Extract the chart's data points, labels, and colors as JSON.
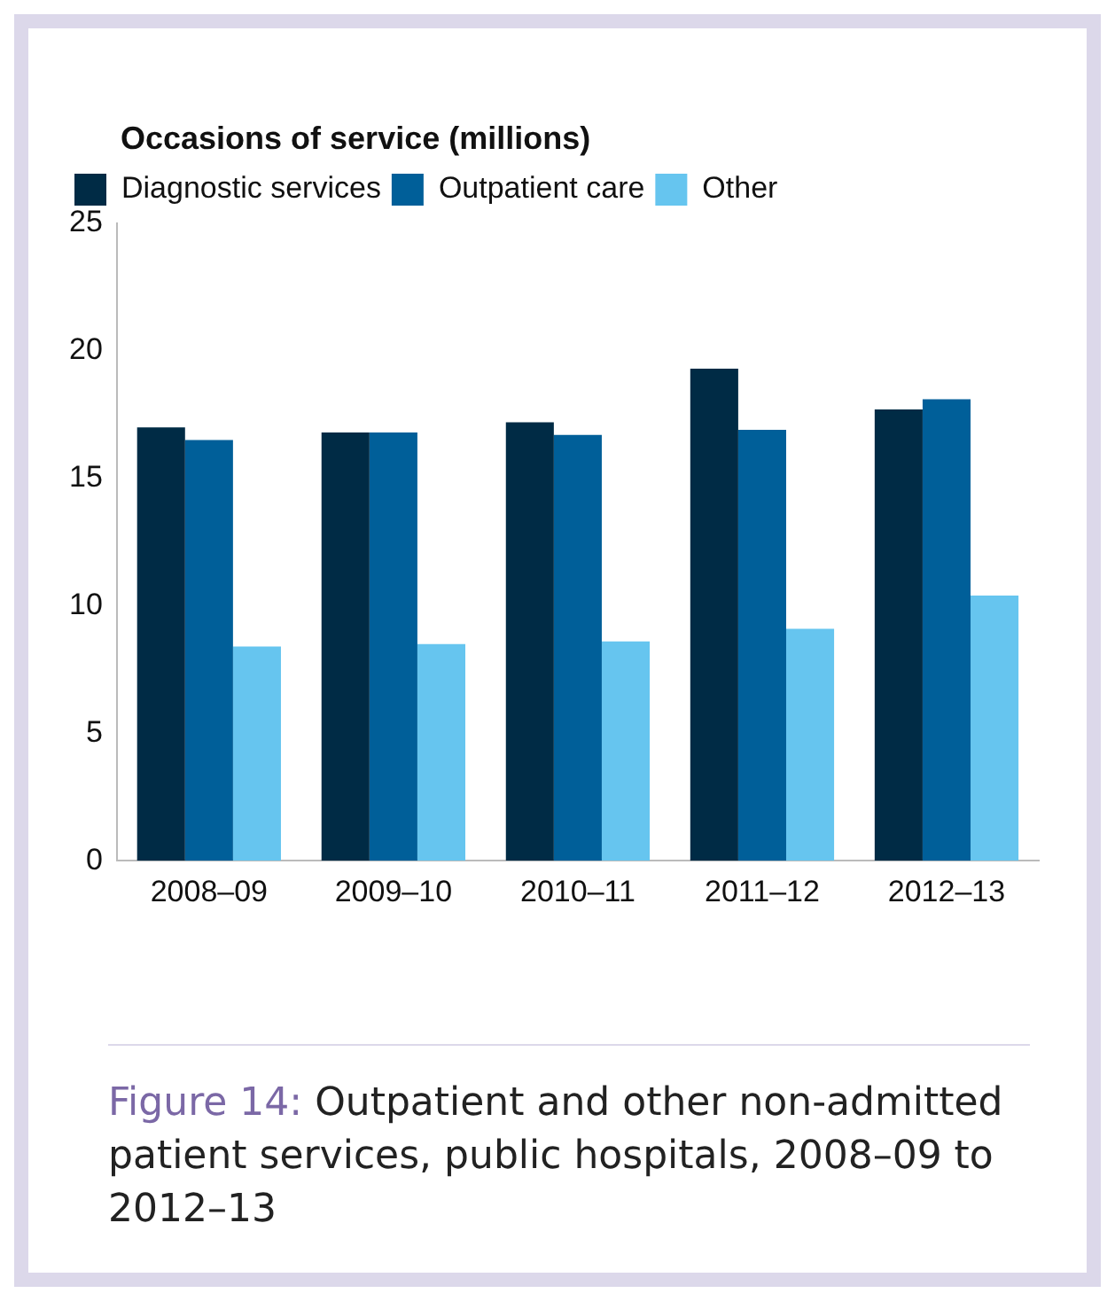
{
  "chart_data": {
    "type": "bar",
    "ylabel": "Occasions of service (millions)",
    "categories": [
      "2008–09",
      "2009–10",
      "2010–11",
      "2011–12",
      "2012–13"
    ],
    "series": [
      {
        "name": "Diagnostic services",
        "color": "#002b45",
        "values": [
          17.0,
          16.8,
          17.2,
          19.3,
          17.7
        ]
      },
      {
        "name": "Outpatient care",
        "color": "#005f99",
        "values": [
          16.5,
          16.8,
          16.7,
          16.9,
          18.1
        ]
      },
      {
        "name": "Other",
        "color": "#66c5ef",
        "values": [
          8.4,
          8.5,
          8.6,
          9.1,
          10.4
        ]
      }
    ],
    "ylim": [
      0,
      25
    ],
    "yticks": [
      0,
      5,
      10,
      15,
      20,
      25
    ],
    "grid": false,
    "legend": "top left",
    "annotations": [
      "Figure 14: Outpatient and other non-admitted patient services, public hospitals, 2008–09 to 2012–13"
    ]
  }
}
